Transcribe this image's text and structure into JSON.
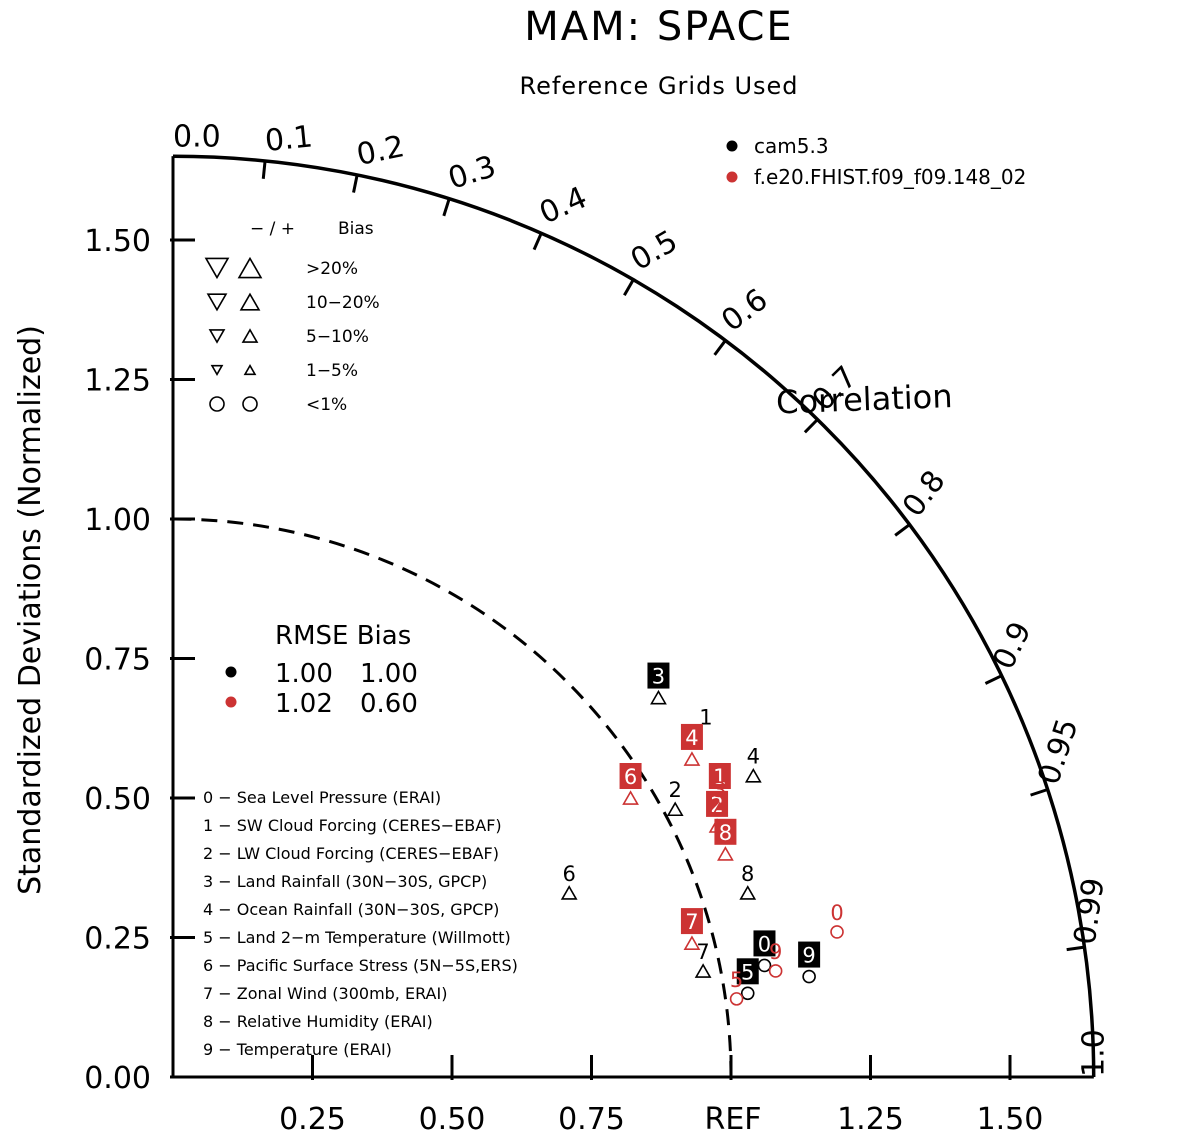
{
  "chart_data": {
    "type": "scatter",
    "plot_kind": "taylor diagram",
    "title": "MAM: SPACE",
    "subtitle": "Reference Grids Used",
    "ylabel": "Standardized Deviations (Normalized)",
    "corr_label": "Correlation",
    "ref_label": "REF",
    "ylim": [
      0,
      1.65
    ],
    "xlim": [
      0,
      1.65
    ],
    "y_ticks": [
      "0.00",
      "0.25",
      "0.50",
      "0.75",
      "1.00",
      "1.25",
      "1.50"
    ],
    "x_ticks": [
      "0.25",
      "0.50",
      "0.75",
      "1.25",
      "1.50"
    ],
    "corr_ticks": [
      "0.0",
      "0.1",
      "0.2",
      "0.3",
      "0.4",
      "0.5",
      "0.6",
      "0.7",
      "0.8",
      "0.9",
      "0.95",
      "0.99",
      "1.0"
    ],
    "series": [
      {
        "name": "cam5.3",
        "color": "#000000",
        "points": [
          {
            "id": "0",
            "x": 1.06,
            "y": 0.2,
            "marker": "circle",
            "label": "0",
            "label_style": "box"
          },
          {
            "id": "1",
            "x": 0.955,
            "y": 0.61,
            "marker": "none",
            "label": "1",
            "label_style": "plain"
          },
          {
            "id": "2",
            "x": 0.9,
            "y": 0.48,
            "marker": "triangle-up",
            "label": "2",
            "label_style": "plain"
          },
          {
            "id": "3",
            "x": 0.87,
            "y": 0.68,
            "marker": "triangle-up",
            "label": "3",
            "label_style": "box"
          },
          {
            "id": "4",
            "x": 1.04,
            "y": 0.54,
            "marker": "triangle-up",
            "label": "4",
            "label_style": "plain"
          },
          {
            "id": "5",
            "x": 1.03,
            "y": 0.15,
            "marker": "circle",
            "label": "5",
            "label_style": "box"
          },
          {
            "id": "6",
            "x": 0.71,
            "y": 0.33,
            "marker": "triangle-up",
            "label": "6",
            "label_style": "plain"
          },
          {
            "id": "7",
            "x": 0.95,
            "y": 0.19,
            "marker": "triangle-up",
            "label": "7",
            "label_style": "plain"
          },
          {
            "id": "8",
            "x": 1.03,
            "y": 0.33,
            "marker": "triangle-up",
            "label": "8",
            "label_style": "plain"
          },
          {
            "id": "9",
            "x": 1.14,
            "y": 0.18,
            "marker": "circle",
            "label": "9",
            "label_style": "box"
          }
        ]
      },
      {
        "name": "f.e20.FHIST.f09_f09.148_02",
        "color": "#cc3333",
        "points": [
          {
            "id": "0",
            "x": 1.19,
            "y": 0.26,
            "marker": "circle",
            "label": "0",
            "label_style": "plain"
          },
          {
            "id": "1",
            "x": 0.98,
            "y": 0.5,
            "marker": "circle",
            "label": "1",
            "label_style": "box"
          },
          {
            "id": "2",
            "x": 0.975,
            "y": 0.45,
            "marker": "triangle-up",
            "label": "2",
            "label_style": "box"
          },
          {
            "id": "3",
            "x": 0.98,
            "y": 0.48,
            "marker": "triangle-up",
            "label": "3",
            "label_style": "plain"
          },
          {
            "id": "4",
            "x": 0.93,
            "y": 0.57,
            "marker": "triangle-up",
            "label": "4",
            "label_style": "box"
          },
          {
            "id": "5",
            "x": 1.01,
            "y": 0.14,
            "marker": "circle",
            "label": "5",
            "label_style": "plain"
          },
          {
            "id": "6",
            "x": 0.82,
            "y": 0.5,
            "marker": "triangle-up",
            "label": "6",
            "label_style": "box"
          },
          {
            "id": "7",
            "x": 0.93,
            "y": 0.24,
            "marker": "triangle-up",
            "label": "7",
            "label_style": "box"
          },
          {
            "id": "8",
            "x": 0.99,
            "y": 0.4,
            "marker": "triangle-up",
            "label": "8",
            "label_style": "box"
          },
          {
            "id": "9",
            "x": 1.08,
            "y": 0.19,
            "marker": "circle",
            "label": "9",
            "label_style": "plain"
          }
        ]
      }
    ],
    "legend": {
      "placement": "top-right",
      "entries": [
        {
          "name": "cam5.3",
          "color": "#000000"
        },
        {
          "name": "f.e20.FHIST.f09_f09.148_02",
          "color": "#cc3333"
        }
      ]
    },
    "bias_legend": {
      "header_left": "− / +",
      "header_right": "Bias",
      "rows": [
        {
          "label": ">20%",
          "symbol": "triangle",
          "size": 22
        },
        {
          "label": "10−20%",
          "symbol": "triangle",
          "size": 18
        },
        {
          "label": "5−10%",
          "symbol": "triangle",
          "size": 14
        },
        {
          "label": "1−5%",
          "symbol": "triangle",
          "size": 10
        },
        {
          "label": "<1%",
          "symbol": "circle",
          "size": 14
        }
      ]
    },
    "rmse_table": {
      "header": "RMSE Bias",
      "rows": [
        {
          "color": "#000000",
          "rmse": "1.00",
          "bias": "1.00"
        },
        {
          "color": "#cc3333",
          "rmse": "1.02",
          "bias": "0.60"
        }
      ]
    },
    "variable_key": [
      "0 − Sea Level Pressure (ERAI)",
      "1 − SW Cloud Forcing (CERES−EBAF)",
      "2 − LW Cloud Forcing (CERES−EBAF)",
      "3 − Land Rainfall (30N−30S, GPCP)",
      "4 − Ocean Rainfall (30N−30S, GPCP)",
      "5 − Land 2−m Temperature (Willmott)",
      "6 − Pacific Surface Stress (5N−5S,ERS)",
      "7 − Zonal Wind (300mb, ERAI)",
      "8 − Relative Humidity (ERAI)",
      "9 − Temperature (ERAI)"
    ]
  }
}
